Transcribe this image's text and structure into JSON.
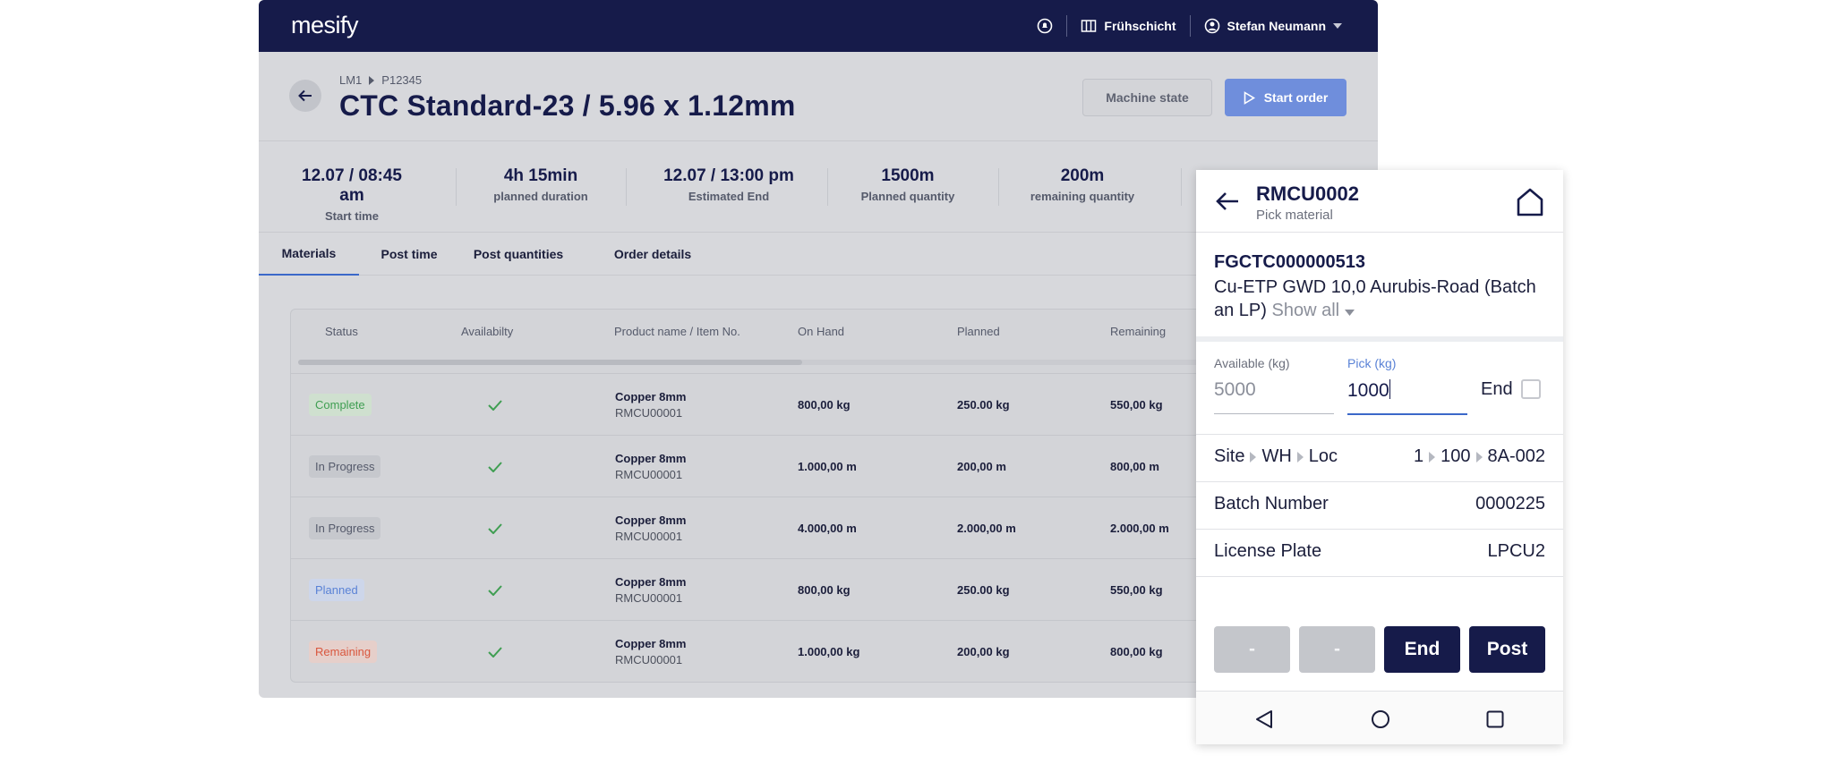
{
  "app": {
    "logo": "mesify",
    "shift": "Frühschicht",
    "user": "Stefan Neumann"
  },
  "header": {
    "breadcrumb": [
      "LM1",
      "P12345"
    ],
    "title": "CTC Standard-23 / 5.96 x 1.12mm",
    "machine_state_label": "Machine state",
    "start_order_label": "Start order"
  },
  "stats": [
    {
      "value": "12.07 / 08:45 am",
      "label": "Start time"
    },
    {
      "value": "4h 15min",
      "label": "planned duration"
    },
    {
      "value": "12.07 / 13:00 pm",
      "label": "Estimated End"
    },
    {
      "value": "1500m",
      "label": "Planned quantity"
    },
    {
      "value": "200m",
      "label": "remaining quantity"
    }
  ],
  "tabs": [
    "Materials",
    "Post time",
    "Post quantities",
    "Order details"
  ],
  "table": {
    "columns": [
      "Status",
      "Availabilty",
      "Product name / Item No.",
      "On Hand",
      "Planned",
      "Remaining"
    ],
    "rows": [
      {
        "status": "Complete",
        "status_type": "complete",
        "name": "Copper 8mm",
        "item": "RMCU00001",
        "on_hand": "800,00 kg",
        "planned": "250.00 kg",
        "remaining": "550,00 kg"
      },
      {
        "status": "In Progress",
        "status_type": "progress",
        "name": "Copper 8mm",
        "item": "RMCU00001",
        "on_hand": "1.000,00 m",
        "planned": "200,00 m",
        "remaining": "800,00 m"
      },
      {
        "status": "In Progress",
        "status_type": "progress",
        "name": "Copper 8mm",
        "item": "RMCU00001",
        "on_hand": "4.000,00 m",
        "planned": "2.000,00 m",
        "remaining": "2.000,00 m"
      },
      {
        "status": "Planned",
        "status_type": "planned",
        "name": "Copper 8mm",
        "item": "RMCU00001",
        "on_hand": "800,00 kg",
        "planned": "250.00 kg",
        "remaining": "550,00 kg"
      },
      {
        "status": "Remaining",
        "status_type": "remaining",
        "name": "Copper 8mm",
        "item": "RMCU00001",
        "on_hand": "1.000,00 kg",
        "planned": "200,00 kg",
        "remaining": "800,00 kg"
      }
    ]
  },
  "phone": {
    "title": "RMCU0002",
    "subtitle": "Pick material",
    "code": "FGCTC000000513",
    "description": "Cu-ETP GWD 10,0 Aurubis-Road (Batch an LP)",
    "show_all": "Show all",
    "available_label": "Available (kg)",
    "available_value": "5000",
    "pick_label": "Pick (kg)",
    "pick_value": "1000",
    "end_label": "End",
    "location_keys": [
      "Site",
      "WH",
      "Loc"
    ],
    "location_values": [
      "1",
      "100",
      "8A-002"
    ],
    "batch_label": "Batch Number",
    "batch_value": "0000225",
    "plate_label": "License Plate",
    "plate_value": "LPCU2",
    "buttons": [
      "-",
      "-",
      "End",
      "Post"
    ]
  },
  "colors": {
    "navy": "#161b4a",
    "accent": "#3b68c9",
    "complete": "#3f9e52",
    "planned": "#5a82d6",
    "remaining": "#d9573e"
  }
}
